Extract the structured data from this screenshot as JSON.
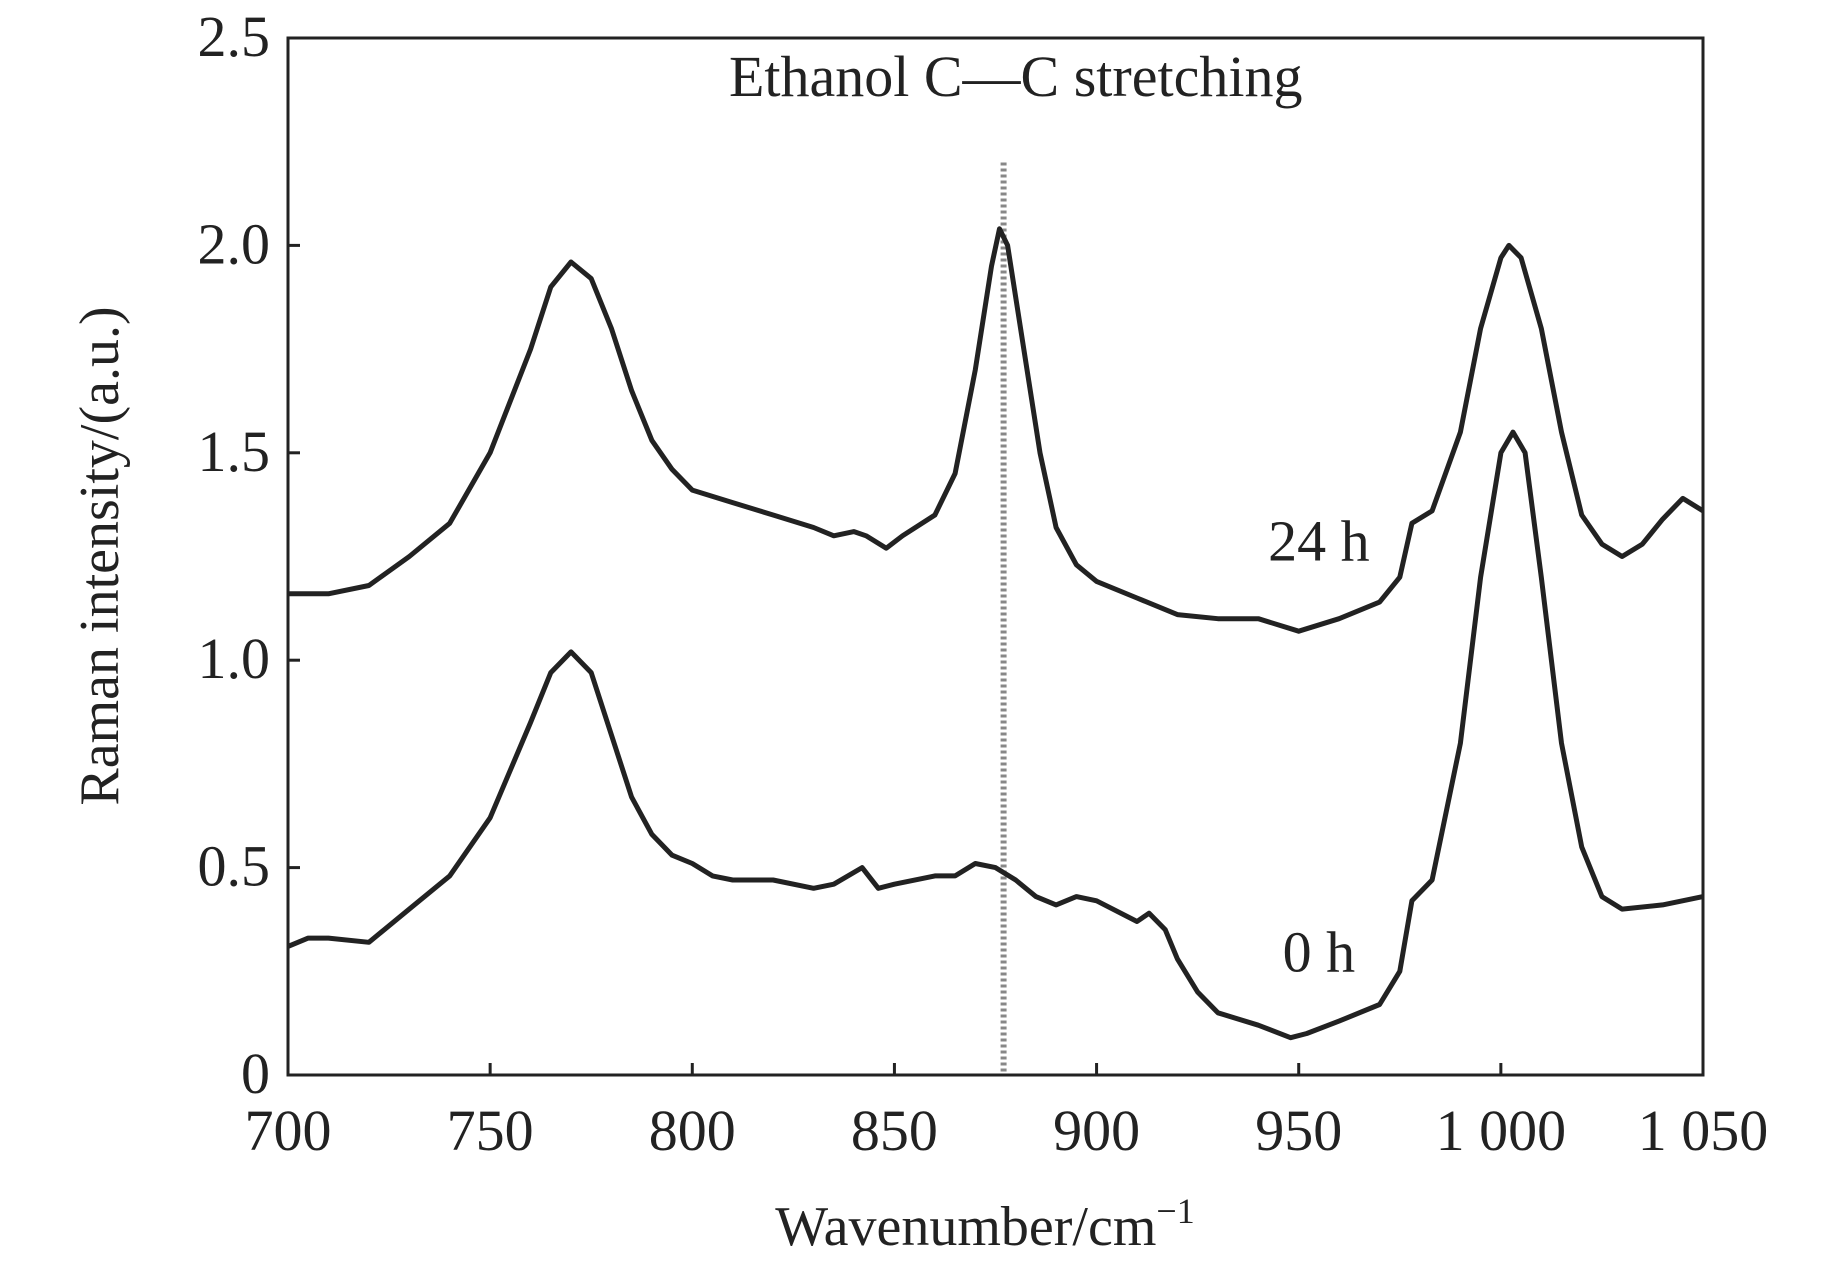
{
  "chart_data": {
    "type": "line",
    "title": "",
    "xlabel": "Wavenumber/cm",
    "xlabel_superscript": "−1",
    "ylabel": "Raman intensity/(a.u.)",
    "xlim": [
      700,
      1050
    ],
    "ylim": [
      0,
      2.5
    ],
    "grid": false,
    "xticks": [
      700,
      750,
      800,
      850,
      900,
      950,
      1000,
      1050
    ],
    "xtick_labels": [
      "700",
      "750",
      "800",
      "850",
      "900",
      "950",
      "1 000",
      "1 050"
    ],
    "yticks": [
      0,
      0.5,
      1.0,
      1.5,
      2.0,
      2.5
    ],
    "ytick_labels": [
      "0",
      "0.5",
      "1.0",
      "1.5",
      "2.0",
      "2.5"
    ],
    "annotation": {
      "text": "Ethanol C—C stretching",
      "x": 880,
      "y": 2.36
    },
    "reference_line": {
      "x": 877,
      "y_range": [
        0,
        2.2
      ],
      "style": "dotted"
    },
    "series": [
      {
        "name": "24 h",
        "label_pos": {
          "x": 955,
          "y": 1.24
        },
        "x": [
          700,
          710,
          720,
          730,
          740,
          750,
          760,
          765,
          770,
          775,
          780,
          785,
          790,
          795,
          800,
          810,
          820,
          830,
          835,
          840,
          843,
          848,
          852,
          860,
          865,
          870,
          874,
          876,
          878,
          882,
          886,
          890,
          895,
          900,
          910,
          920,
          930,
          940,
          950,
          960,
          970,
          975,
          978,
          983,
          990,
          995,
          1000,
          1002,
          1005,
          1010,
          1015,
          1020,
          1025,
          1030,
          1035,
          1040,
          1045,
          1050
        ],
        "y": [
          1.16,
          1.16,
          1.18,
          1.25,
          1.33,
          1.5,
          1.75,
          1.9,
          1.96,
          1.92,
          1.8,
          1.65,
          1.53,
          1.46,
          1.41,
          1.38,
          1.35,
          1.32,
          1.3,
          1.31,
          1.3,
          1.27,
          1.3,
          1.35,
          1.45,
          1.7,
          1.95,
          2.04,
          2.0,
          1.75,
          1.5,
          1.32,
          1.23,
          1.19,
          1.15,
          1.11,
          1.1,
          1.1,
          1.07,
          1.1,
          1.14,
          1.2,
          1.33,
          1.36,
          1.55,
          1.8,
          1.97,
          2.0,
          1.97,
          1.8,
          1.55,
          1.35,
          1.28,
          1.25,
          1.28,
          1.34,
          1.39,
          1.36
        ]
      },
      {
        "name": "0 h",
        "label_pos": {
          "x": 955,
          "y": 0.25
        },
        "x": [
          700,
          705,
          710,
          720,
          730,
          740,
          750,
          760,
          765,
          770,
          775,
          780,
          785,
          790,
          795,
          800,
          805,
          810,
          820,
          830,
          835,
          842,
          846,
          850,
          860,
          865,
          870,
          875,
          880,
          885,
          890,
          895,
          900,
          910,
          913,
          917,
          920,
          925,
          930,
          940,
          948,
          952,
          960,
          970,
          975,
          978,
          983,
          990,
          995,
          1000,
          1003,
          1006,
          1010,
          1015,
          1020,
          1025,
          1030,
          1040,
          1050
        ],
        "y": [
          0.31,
          0.33,
          0.33,
          0.32,
          0.4,
          0.48,
          0.62,
          0.85,
          0.97,
          1.02,
          0.97,
          0.82,
          0.67,
          0.58,
          0.53,
          0.51,
          0.48,
          0.47,
          0.47,
          0.45,
          0.46,
          0.5,
          0.45,
          0.46,
          0.48,
          0.48,
          0.51,
          0.5,
          0.47,
          0.43,
          0.41,
          0.43,
          0.42,
          0.37,
          0.39,
          0.35,
          0.28,
          0.2,
          0.15,
          0.12,
          0.09,
          0.1,
          0.13,
          0.17,
          0.25,
          0.42,
          0.47,
          0.8,
          1.2,
          1.5,
          1.55,
          1.5,
          1.2,
          0.8,
          0.55,
          0.43,
          0.4,
          0.41,
          0.43
        ]
      }
    ]
  }
}
